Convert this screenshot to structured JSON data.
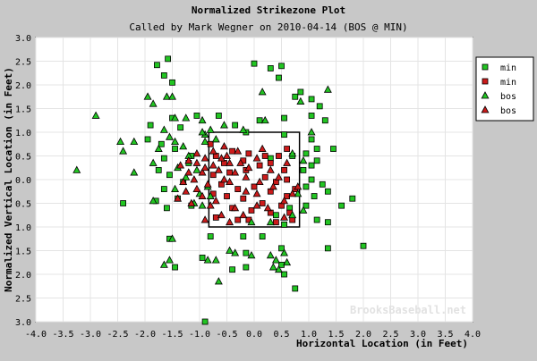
{
  "chart_data": {
    "type": "scatter",
    "title": "Normalized Strikezone Plot",
    "subtitle": "Called by Mark Wegner on 2010-04-14 (BOS @ MIN)",
    "xlabel": "Horizontal Location (in Feet)",
    "ylabel": "Normalized Vertical Location (in Feet)",
    "xlim": [
      -4.0,
      4.0
    ],
    "ylim": [
      -3.0,
      3.0
    ],
    "x_ticks": [
      "-4.0",
      "-3.5",
      "-3.0",
      "-2.5",
      "-2.0",
      "-1.5",
      "-1.0",
      "-0.5",
      "0.0",
      "0.5",
      "1.0",
      "1.5",
      "2.0",
      "2.5",
      "3.0",
      "3.5",
      "4.0"
    ],
    "y_ticks": [
      "3.0",
      "2.5",
      "2.0",
      "1.5",
      "1.0",
      "0.5",
      "0.0",
      "0.5",
      "1.0",
      "1.5",
      "2.0",
      "2.5",
      "3.0"
    ],
    "grid": true,
    "legend_position": "top-right",
    "watermark": "BrooksBaseball.net",
    "strike_zone": {
      "x_min": -0.83,
      "x_max": 0.83,
      "y_min": -1.0,
      "y_max": 1.0
    },
    "colors": {
      "green": "#22c522",
      "red": "#cc1b1b"
    },
    "series": [
      {
        "name": "min",
        "marker": "square",
        "color": "#22c522",
        "points": [
          [
            0.0,
            2.45
          ],
          [
            0.3,
            2.35
          ],
          [
            0.5,
            2.4
          ],
          [
            0.45,
            2.15
          ],
          [
            -1.58,
            2.55
          ],
          [
            -1.78,
            2.42
          ],
          [
            -1.65,
            2.2
          ],
          [
            -1.5,
            2.05
          ],
          [
            0.85,
            1.85
          ],
          [
            0.75,
            1.75
          ],
          [
            1.05,
            1.7
          ],
          [
            1.2,
            1.55
          ],
          [
            -1.05,
            1.35
          ],
          [
            -0.65,
            1.35
          ],
          [
            1.05,
            1.35
          ],
          [
            0.55,
            1.3
          ],
          [
            0.1,
            1.25
          ],
          [
            1.3,
            1.25
          ],
          [
            -1.5,
            1.3
          ],
          [
            -1.35,
            1.1
          ],
          [
            -1.9,
            1.15
          ],
          [
            -0.35,
            1.15
          ],
          [
            -1.95,
            0.85
          ],
          [
            -1.7,
            0.75
          ],
          [
            -1.45,
            0.65
          ],
          [
            -1.15,
            0.5
          ],
          [
            -1.65,
            0.45
          ],
          [
            -1.2,
            0.35
          ],
          [
            -1.75,
            0.2
          ],
          [
            -1.55,
            0.1
          ],
          [
            -1.3,
            -0.05
          ],
          [
            -1.65,
            -0.2
          ],
          [
            -1.4,
            -0.4
          ],
          [
            -1.8,
            -0.45
          ],
          [
            -2.4,
            -0.5
          ],
          [
            -1.6,
            -0.6
          ],
          [
            -1.15,
            -0.55
          ],
          [
            -0.15,
            1.0
          ],
          [
            0.55,
            0.95
          ],
          [
            1.05,
            0.85
          ],
          [
            1.15,
            0.65
          ],
          [
            1.45,
            0.65
          ],
          [
            0.95,
            0.55
          ],
          [
            0.7,
            0.5
          ],
          [
            0.3,
            0.45
          ],
          [
            1.15,
            0.4
          ],
          [
            1.05,
            0.3
          ],
          [
            0.9,
            0.2
          ],
          [
            1.05,
            0.0
          ],
          [
            0.95,
            -0.15
          ],
          [
            1.25,
            -0.1
          ],
          [
            1.35,
            -0.25
          ],
          [
            1.8,
            -0.4
          ],
          [
            1.6,
            -0.55
          ],
          [
            1.1,
            -0.35
          ],
          [
            0.95,
            -0.55
          ],
          [
            0.65,
            -0.6
          ],
          [
            0.4,
            -0.75
          ],
          [
            0.55,
            -0.95
          ],
          [
            1.15,
            -0.85
          ],
          [
            1.35,
            -0.9
          ],
          [
            0.15,
            -1.2
          ],
          [
            -0.8,
            -1.2
          ],
          [
            -0.2,
            -1.2
          ],
          [
            -1.55,
            -1.25
          ],
          [
            0.5,
            -1.45
          ],
          [
            1.35,
            -1.45
          ],
          [
            -0.15,
            -1.55
          ],
          [
            -0.95,
            -1.65
          ],
          [
            2.0,
            -1.4
          ],
          [
            -1.45,
            -1.85
          ],
          [
            -0.4,
            -1.9
          ],
          [
            -0.15,
            -1.85
          ],
          [
            0.5,
            -1.8
          ],
          [
            0.55,
            -2.0
          ],
          [
            0.75,
            -2.3
          ],
          [
            -0.9,
            -3.0
          ]
        ]
      },
      {
        "name": "min",
        "marker": "square",
        "color": "#cc1b1b",
        "points": [
          [
            -0.7,
            0.5
          ],
          [
            -0.4,
            0.6
          ],
          [
            -0.1,
            0.55
          ],
          [
            0.2,
            0.5
          ],
          [
            0.45,
            0.5
          ],
          [
            -0.55,
            0.35
          ],
          [
            -0.2,
            0.4
          ],
          [
            0.1,
            0.3
          ],
          [
            0.3,
            0.35
          ],
          [
            0.55,
            0.2
          ],
          [
            -0.75,
            0.1
          ],
          [
            -0.45,
            0.15
          ],
          [
            -0.15,
            0.2
          ],
          [
            0.2,
            0.05
          ],
          [
            0.4,
            -0.05
          ],
          [
            0.6,
            0.0
          ],
          [
            -0.6,
            -0.1
          ],
          [
            -0.3,
            -0.2
          ],
          [
            0.0,
            -0.15
          ],
          [
            0.3,
            -0.25
          ],
          [
            0.6,
            -0.35
          ],
          [
            -0.75,
            -0.3
          ],
          [
            -0.5,
            -0.35
          ],
          [
            -0.2,
            -0.4
          ],
          [
            0.15,
            -0.5
          ],
          [
            0.5,
            -0.55
          ],
          [
            -0.4,
            -0.6
          ],
          [
            -0.05,
            -0.65
          ],
          [
            0.3,
            -0.7
          ],
          [
            0.65,
            -0.7
          ],
          [
            -0.7,
            -0.8
          ],
          [
            -0.3,
            -0.85
          ],
          [
            -0.1,
            -0.85
          ],
          [
            0.4,
            -0.9
          ],
          [
            0.7,
            -0.85
          ],
          [
            0.6,
            0.65
          ],
          [
            -0.8,
            0.75
          ],
          [
            0.75,
            -0.2
          ]
        ]
      },
      {
        "name": "bos",
        "marker": "triangle",
        "color": "#22c522",
        "points": [
          [
            -3.25,
            0.2
          ],
          [
            -2.9,
            1.35
          ],
          [
            -2.45,
            0.8
          ],
          [
            -2.4,
            0.6
          ],
          [
            -2.2,
            0.8
          ],
          [
            -1.95,
            1.75
          ],
          [
            -1.85,
            1.6
          ],
          [
            -1.65,
            1.05
          ],
          [
            -2.2,
            0.15
          ],
          [
            -1.85,
            0.35
          ],
          [
            -1.75,
            0.65
          ],
          [
            -1.55,
            0.9
          ],
          [
            -1.45,
            0.8
          ],
          [
            -1.3,
            0.7
          ],
          [
            -1.2,
            0.5
          ],
          [
            -1.4,
            0.25
          ],
          [
            -1.85,
            -0.45
          ],
          [
            -1.45,
            -0.2
          ],
          [
            -1.25,
            0.05
          ],
          [
            -1.05,
            0.2
          ],
          [
            -1.1,
            -0.5
          ],
          [
            -1.6,
            1.75
          ],
          [
            -1.5,
            1.75
          ],
          [
            -1.45,
            1.3
          ],
          [
            -1.25,
            1.3
          ],
          [
            -0.95,
            1.25
          ],
          [
            -0.8,
            1.05
          ],
          [
            -0.9,
            0.95
          ],
          [
            -0.7,
            0.85
          ],
          [
            -0.55,
            1.15
          ],
          [
            -0.2,
            1.05
          ],
          [
            0.2,
            1.25
          ],
          [
            0.15,
            1.85
          ],
          [
            -0.95,
            1.0
          ],
          [
            -0.9,
            0.8
          ],
          [
            0.7,
            0.55
          ],
          [
            0.9,
            0.4
          ],
          [
            1.05,
            1.0
          ],
          [
            1.35,
            1.9
          ],
          [
            0.85,
            1.65
          ],
          [
            -1.0,
            -0.3
          ],
          [
            -0.95,
            -0.55
          ],
          [
            -0.85,
            -0.15
          ],
          [
            -0.8,
            -0.35
          ],
          [
            -1.5,
            -1.25
          ],
          [
            -1.55,
            -1.7
          ],
          [
            -1.65,
            -1.8
          ],
          [
            -0.85,
            -1.7
          ],
          [
            -0.7,
            -1.7
          ],
          [
            -0.45,
            -1.5
          ],
          [
            -0.35,
            -1.55
          ],
          [
            -0.05,
            -1.6
          ],
          [
            0.3,
            -1.6
          ],
          [
            0.4,
            -1.7
          ],
          [
            0.6,
            -1.75
          ],
          [
            0.35,
            -1.85
          ],
          [
            0.45,
            -1.9
          ],
          [
            0.55,
            -1.55
          ],
          [
            -0.65,
            -2.15
          ],
          [
            0.9,
            -0.65
          ],
          [
            0.7,
            -0.75
          ],
          [
            0.8,
            -0.3
          ],
          [
            0.3,
            -0.9
          ],
          [
            -0.05,
            -0.9
          ]
        ]
      },
      {
        "name": "bos",
        "marker": "triangle",
        "color": "#cc1b1b",
        "points": [
          [
            -1.35,
            0.3
          ],
          [
            -1.2,
            0.15
          ],
          [
            -1.05,
            0.35
          ],
          [
            -0.9,
            0.45
          ],
          [
            -1.3,
            -0.05
          ],
          [
            -1.1,
            0.0
          ],
          [
            -0.95,
            0.15
          ],
          [
            -1.25,
            -0.25
          ],
          [
            -1.05,
            -0.2
          ],
          [
            -0.85,
            -0.1
          ],
          [
            -1.15,
            -0.5
          ],
          [
            -0.95,
            -0.35
          ],
          [
            -1.05,
            0.55
          ],
          [
            -0.9,
            0.25
          ],
          [
            -0.8,
            -0.55
          ],
          [
            -1.4,
            -0.4
          ],
          [
            -0.75,
            0.3
          ],
          [
            -0.6,
            0.45
          ],
          [
            -0.65,
            0.2
          ],
          [
            -0.55,
            0.0
          ],
          [
            -0.45,
            -0.05
          ],
          [
            -0.35,
            0.15
          ],
          [
            -0.25,
            0.35
          ],
          [
            -0.1,
            0.25
          ],
          [
            0.05,
            0.45
          ],
          [
            0.15,
            0.65
          ],
          [
            0.3,
            0.2
          ],
          [
            0.45,
            0.05
          ],
          [
            0.6,
            0.35
          ],
          [
            0.7,
            -0.3
          ],
          [
            0.55,
            -0.8
          ],
          [
            0.25,
            -0.6
          ],
          [
            0.05,
            -0.3
          ],
          [
            -0.15,
            -0.25
          ],
          [
            -0.35,
            -0.6
          ],
          [
            -0.6,
            -0.75
          ],
          [
            -0.45,
            -0.9
          ],
          [
            -0.2,
            -0.75
          ],
          [
            0.05,
            -0.55
          ],
          [
            0.35,
            -0.15
          ],
          [
            0.55,
            -0.45
          ],
          [
            0.8,
            -0.15
          ],
          [
            -0.3,
            0.6
          ],
          [
            -0.5,
            0.5
          ],
          [
            -0.15,
            0.05
          ],
          [
            0.1,
            -0.05
          ],
          [
            -0.7,
            -0.45
          ],
          [
            -0.9,
            -0.85
          ],
          [
            -1.2,
            0.4
          ],
          [
            -0.55,
            0.7
          ],
          [
            -0.75,
            0.6
          ],
          [
            -0.45,
            0.35
          ]
        ]
      }
    ]
  }
}
